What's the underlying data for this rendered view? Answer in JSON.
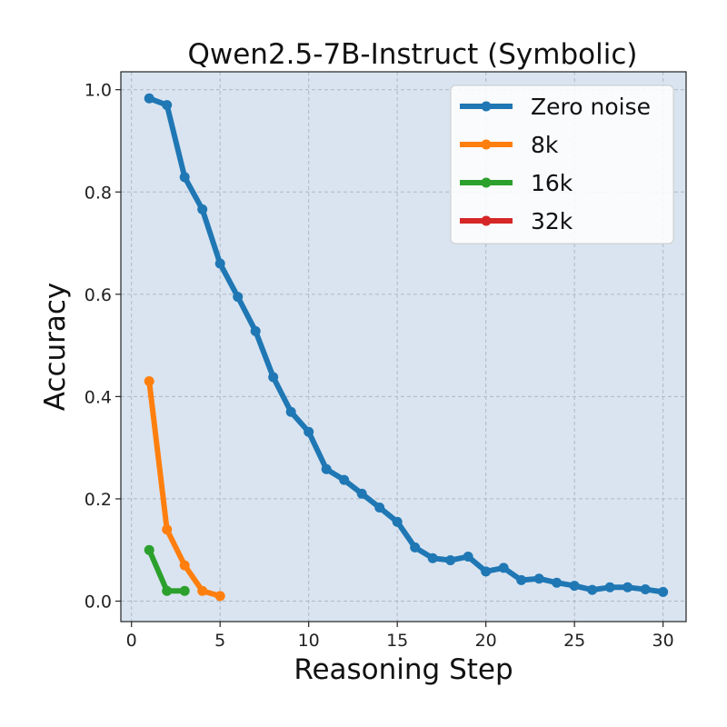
{
  "chart_data": {
    "type": "line",
    "title": "Qwen2.5-7B-Instruct (Symbolic)",
    "xlabel": "Reasoning Step",
    "ylabel": "Accuracy",
    "xlim": [
      -0.6,
      31.3
    ],
    "ylim": [
      -0.04,
      1.035
    ],
    "xticks": [
      0,
      5,
      10,
      15,
      20,
      25,
      30
    ],
    "yticks": [
      0.0,
      0.2,
      0.4,
      0.6,
      0.8,
      1.0
    ],
    "xtick_labels": [
      "0",
      "5",
      "10",
      "15",
      "20",
      "25",
      "30"
    ],
    "ytick_labels": [
      "0.0",
      "0.2",
      "0.4",
      "0.6",
      "0.8",
      "1.0"
    ],
    "grid": true,
    "legend_position": "top-right",
    "plot_background": "#d9e4f0",
    "series": [
      {
        "name": "Zero noise",
        "color": "#1f77b4",
        "x": [
          1,
          2,
          3,
          4,
          5,
          6,
          7,
          8,
          9,
          10,
          11,
          12,
          13,
          14,
          15,
          16,
          17,
          18,
          19,
          20,
          21,
          22,
          23,
          24,
          25,
          26,
          27,
          28,
          29,
          30
        ],
        "y": [
          0.983,
          0.97,
          0.829,
          0.766,
          0.66,
          0.595,
          0.528,
          0.438,
          0.37,
          0.331,
          0.258,
          0.237,
          0.21,
          0.183,
          0.155,
          0.105,
          0.084,
          0.08,
          0.087,
          0.058,
          0.065,
          0.041,
          0.044,
          0.036,
          0.03,
          0.022,
          0.027,
          0.027,
          0.023,
          0.018
        ]
      },
      {
        "name": "8k",
        "color": "#ff7f0e",
        "x": [
          1,
          2,
          3,
          4,
          5
        ],
        "y": [
          0.43,
          0.14,
          0.07,
          0.02,
          0.01
        ]
      },
      {
        "name": "16k",
        "color": "#2ca02c",
        "x": [
          1,
          2,
          3
        ],
        "y": [
          0.1,
          0.02,
          0.02
        ]
      },
      {
        "name": "32k",
        "color": "#d62728",
        "x": [],
        "y": []
      }
    ]
  }
}
